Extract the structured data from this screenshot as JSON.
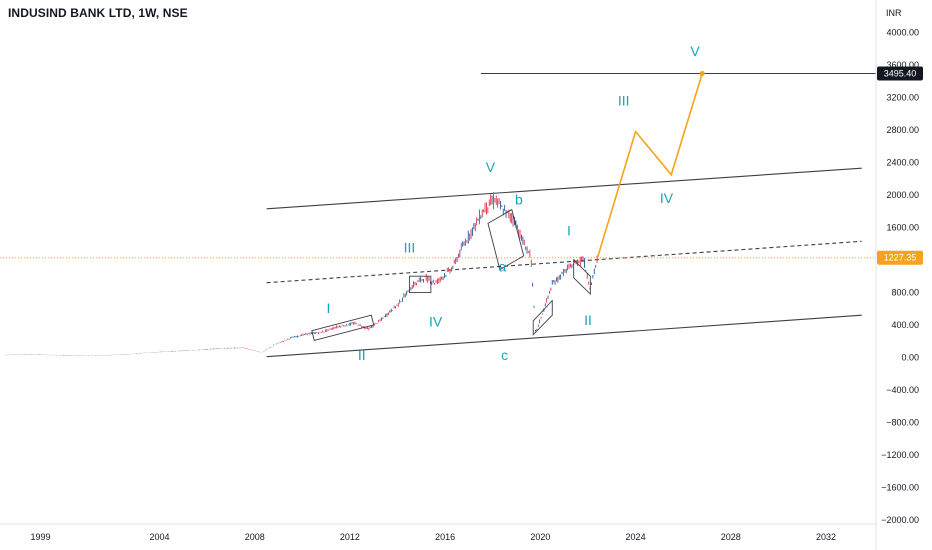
{
  "header": {
    "title": "INDUSIND BANK LTD, 1W, NSE"
  },
  "colors": {
    "wave_label": "#12a8b8",
    "projection": "#f7a21b",
    "trendline": "#3b3f4a",
    "price_line": "#f7a21b",
    "candle_up": "#26599e",
    "candle_down": "#e0304a",
    "target_badge": "#131722"
  },
  "chart_data": {
    "type": "line",
    "title": "INDUSIND BANK LTD, 1W, NSE",
    "ylabel": "INR",
    "ylim": [
      -2050,
      4400
    ],
    "xlim": [
      1997.8,
      2034.6
    ],
    "x_ticks": [
      "1999",
      "2004",
      "2008",
      "2012",
      "2016",
      "2020",
      "2024",
      "2028",
      "2032"
    ],
    "y_ticks": [
      "4000.00",
      "3600.00",
      "3200.00",
      "2800.00",
      "2400.00",
      "2000.00",
      "1600.00",
      "1200.00",
      "800.00",
      "400.00",
      "0.00",
      "−400.00",
      "−800.00",
      "−1200.00",
      "−1600.00",
      "−2000.00"
    ],
    "price_history": {
      "x": [
        1998.0,
        1999.0,
        2000.0,
        2001.0,
        2002.0,
        2003.0,
        2004.0,
        2005.0,
        2006.0,
        2007.0,
        2008.0,
        2008.8,
        2009.3,
        2010.0,
        2010.7,
        2011.3,
        2012.0,
        2012.7,
        2013.3,
        2013.8,
        2014.5,
        2015.2,
        2015.6,
        2016.1,
        2016.8,
        2017.3,
        2017.8,
        2018.2,
        2018.6,
        2018.9,
        2019.4,
        2019.8,
        2020.1,
        2020.3,
        2020.6,
        2021.0,
        2021.5,
        2021.9,
        2022.3,
        2022.6,
        2022.9
      ],
      "y": [
        30,
        40,
        30,
        20,
        25,
        35,
        60,
        75,
        90,
        110,
        120,
        60,
        150,
        240,
        290,
        310,
        380,
        420,
        350,
        460,
        650,
        900,
        980,
        920,
        1100,
        1400,
        1650,
        1850,
        1950,
        1820,
        1700,
        1400,
        1250,
        300,
        550,
        900,
        1050,
        1150,
        1220,
        850,
        1227.35
      ]
    },
    "current_price": "1227.35",
    "target_price": "3495.40",
    "projection": {
      "x": [
        2022.9,
        2024.5,
        2026.0,
        2027.3
      ],
      "y": [
        1227.35,
        2780,
        2250,
        3495.4
      ]
    },
    "channel_upper": {
      "x": [
        2009.0,
        2034.0
      ],
      "y": [
        1830,
        2330
      ]
    },
    "channel_mid": {
      "x": [
        2009.0,
        2034.0
      ],
      "y": [
        920,
        1430
      ]
    },
    "channel_lower": {
      "x": [
        2009.0,
        2034.0
      ],
      "y": [
        10,
        520
      ]
    },
    "target_line": {
      "x": [
        2018.0,
        2034.6
      ],
      "y": [
        3495.4,
        3495.4
      ]
    },
    "wave_labels": [
      {
        "text": "I",
        "x": 2011.6,
        "y": 550
      },
      {
        "text": "II",
        "x": 2013.0,
        "y": -30
      },
      {
        "text": "III",
        "x": 2015.0,
        "y": 1290
      },
      {
        "text": "IV",
        "x": 2016.1,
        "y": 380
      },
      {
        "text": "V",
        "x": 2018.4,
        "y": 2280
      },
      {
        "text": "a",
        "x": 2018.9,
        "y": 1060
      },
      {
        "text": "b",
        "x": 2019.6,
        "y": 1880
      },
      {
        "text": "c",
        "x": 2019.0,
        "y": -30
      },
      {
        "text": "I",
        "x": 2021.7,
        "y": 1500
      },
      {
        "text": "II",
        "x": 2022.5,
        "y": 400
      },
      {
        "text": "III",
        "x": 2024.0,
        "y": 3100
      },
      {
        "text": "IV",
        "x": 2025.8,
        "y": 1900
      },
      {
        "text": "V",
        "x": 2027.0,
        "y": 3710
      }
    ]
  }
}
